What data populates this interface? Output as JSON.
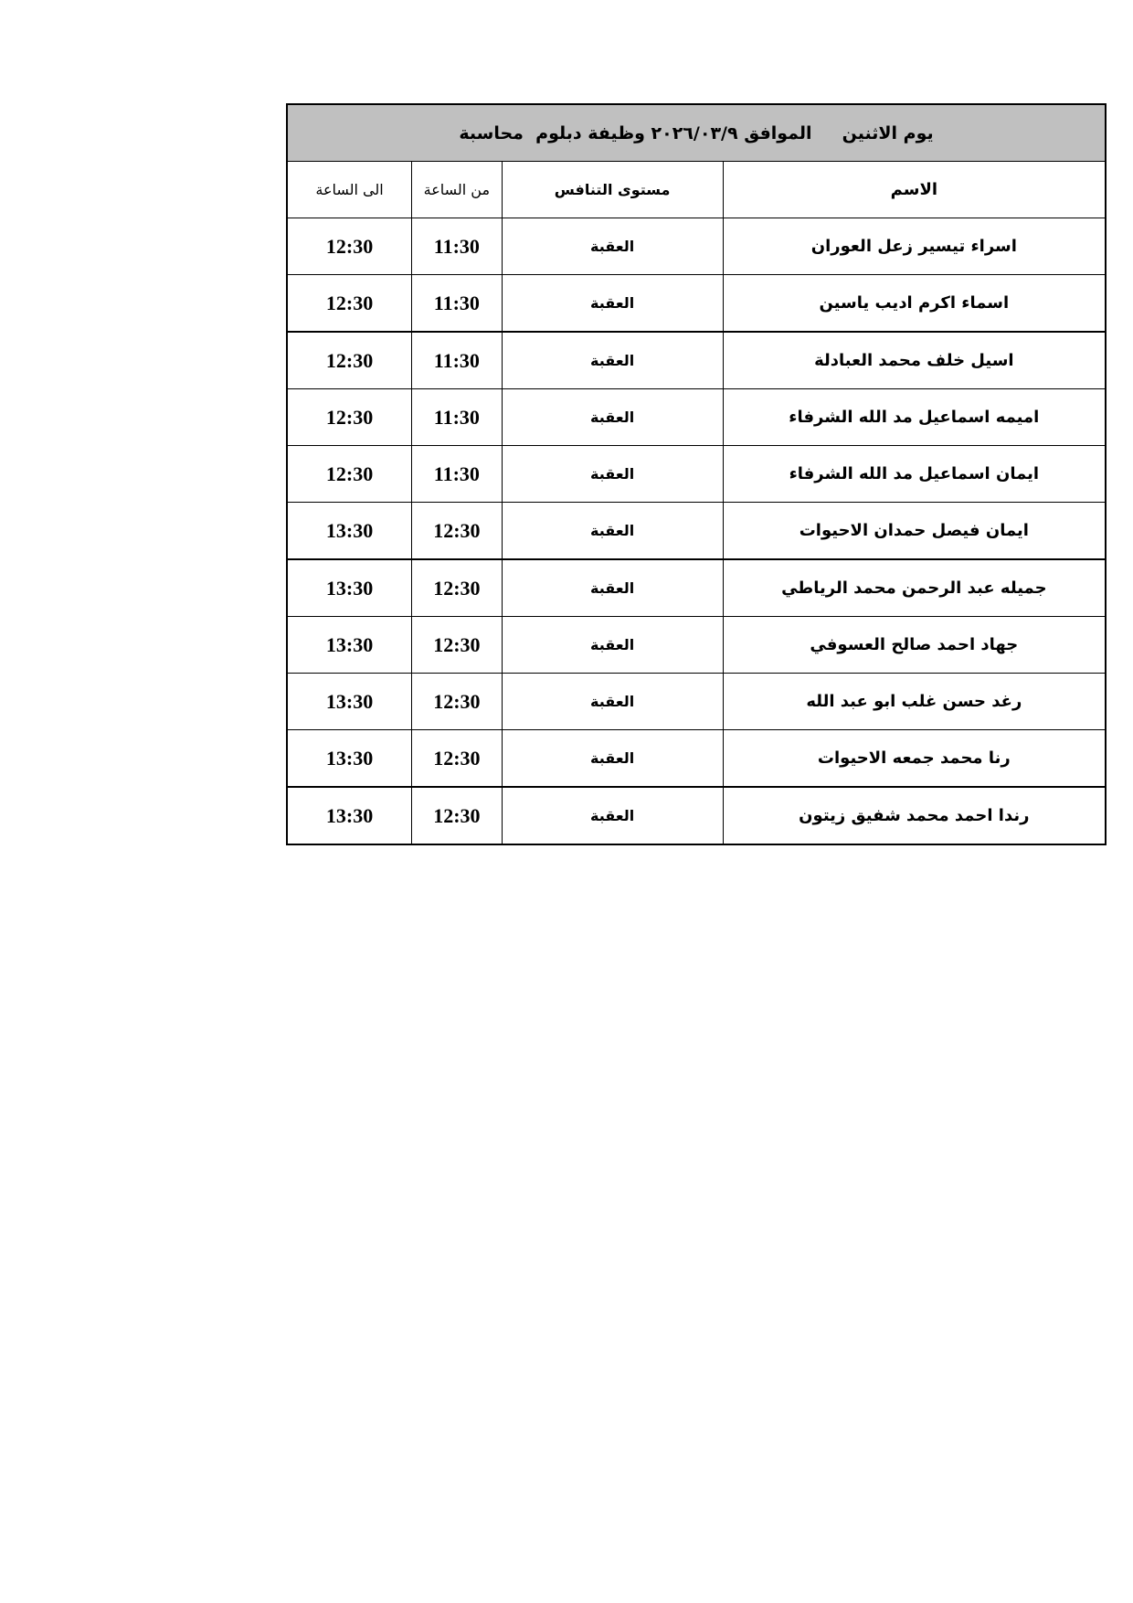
{
  "title": "يوم الاثنين     الموافق ٢٠٢٦/٠٣/٩ وظيفة دبلوم  محاسبة",
  "headers": {
    "name": "الاسم",
    "level": "مستوى التنافس",
    "from": "من الساعة",
    "to": "الى الساعة"
  },
  "rows": [
    {
      "name": "اسراء تيسير زعل العوران",
      "level": "العقبة",
      "from": "11:30",
      "to": "12:30"
    },
    {
      "name": "اسماء اكرم اديب ياسين",
      "level": "العقبة",
      "from": "11:30",
      "to": "12:30"
    },
    {
      "name": "اسيل خلف محمد العبادلة",
      "level": "العقبة",
      "from": "11:30",
      "to": "12:30"
    },
    {
      "name": "اميمه اسماعيل مد الله الشرفاء",
      "level": "العقبة",
      "from": "11:30",
      "to": "12:30"
    },
    {
      "name": "ايمان اسماعيل مد الله الشرفاء",
      "level": "العقبة",
      "from": "11:30",
      "to": "12:30"
    },
    {
      "name": "ايمان فيصل حمدان الاحيوات",
      "level": "العقبة",
      "from": "12:30",
      "to": "13:30"
    },
    {
      "name": "جميله عبد الرحمن محمد الرياطي",
      "level": "العقبة",
      "from": "12:30",
      "to": "13:30"
    },
    {
      "name": "جهاد احمد صالح العسوفي",
      "level": "العقبة",
      "from": "12:30",
      "to": "13:30"
    },
    {
      "name": "رغد حسن غلب ابو عبد الله",
      "level": "العقبة",
      "from": "12:30",
      "to": "13:30"
    },
    {
      "name": "رنا محمد جمعه الاحيوات",
      "level": "العقبة",
      "from": "12:30",
      "to": "13:30"
    },
    {
      "name": "رندا احمد محمد شفيق زيتون",
      "level": "العقبة",
      "from": "12:30",
      "to": "13:30"
    }
  ]
}
